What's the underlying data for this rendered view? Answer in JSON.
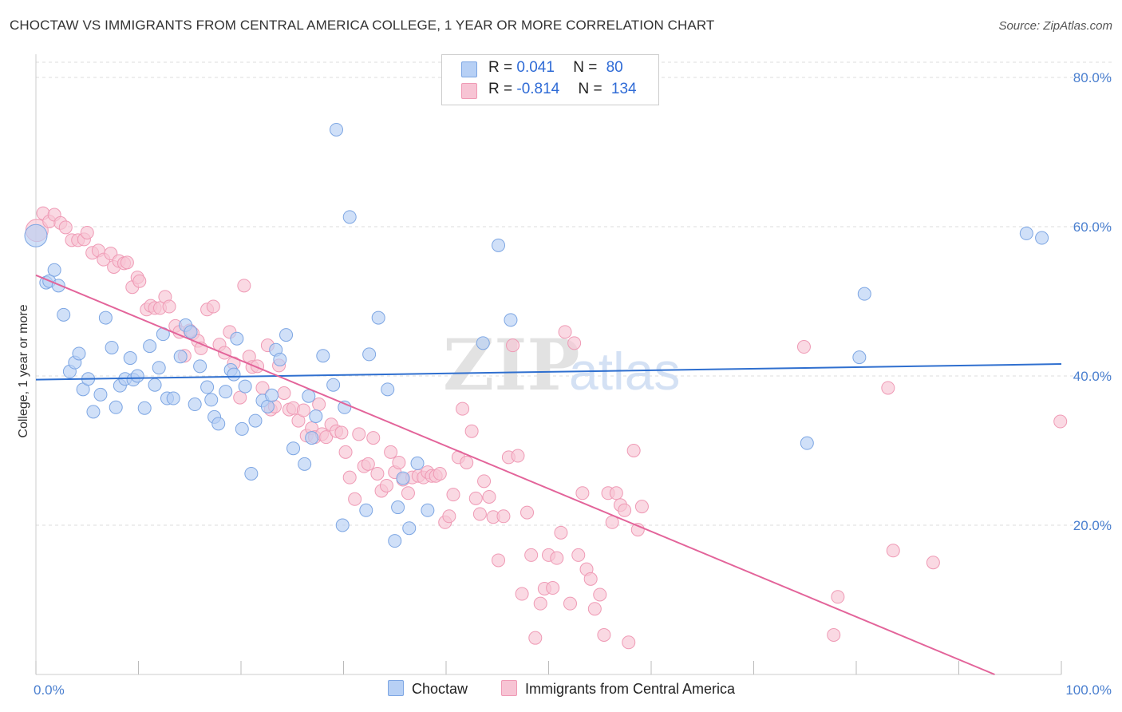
{
  "title": "CHOCTAW VS IMMIGRANTS FROM CENTRAL AMERICA COLLEGE, 1 YEAR OR MORE CORRELATION CHART",
  "source": "Source: ZipAtlas.com",
  "watermark": {
    "zip": "ZIP",
    "atlas": "atlas"
  },
  "legend": {
    "rows": [
      {
        "r_label": "R = ",
        "r_value": "0.041",
        "n_label": "N = ",
        "n_value": "80"
      },
      {
        "r_label": "R = ",
        "r_value": "-0.814",
        "n_label": "N = ",
        "n_value": "134"
      }
    ]
  },
  "colors": {
    "blue_fill": "#b7d0f5",
    "blue_stroke": "#7da6e3",
    "blue_line": "#2f6fcf",
    "pink_fill": "#f7c4d4",
    "pink_stroke": "#ef9ab5",
    "pink_line": "#e3649a",
    "grid": "#dddddd",
    "tick_text": "#4a7fcf"
  },
  "chart_data": {
    "type": "scatter",
    "title": "CHOCTAW VS IMMIGRANTS FROM CENTRAL AMERICA COLLEGE, 1 YEAR OR MORE CORRELATION CHART",
    "xlabel": "",
    "ylabel": "College, 1 year or more",
    "xlim": [
      0,
      100
    ],
    "ylim": [
      0,
      80
    ],
    "x_tick_labels": [
      "0.0%",
      "100.0%"
    ],
    "y_ticks": [
      20,
      40,
      60,
      80
    ],
    "y_tick_labels": [
      "20.0%",
      "40.0%",
      "60.0%",
      "80.0%"
    ],
    "grid": true,
    "legend_position": "top-center",
    "series": [
      {
        "name": "Choctaw",
        "color": "#b7d0f5",
        "trend": {
          "x": [
            0,
            100
          ],
          "y": [
            39.5,
            41.6
          ]
        },
        "points": [
          [
            0,
            58.8
          ],
          [
            1.0,
            52.5
          ],
          [
            1.3,
            52.7
          ],
          [
            1.8,
            54.2
          ],
          [
            2.2,
            52.1
          ],
          [
            2.7,
            48.2
          ],
          [
            3.3,
            40.6
          ],
          [
            3.8,
            41.8
          ],
          [
            4.2,
            43
          ],
          [
            4.6,
            38.2
          ],
          [
            5.1,
            39.6
          ],
          [
            5.6,
            35.2
          ],
          [
            6.3,
            37.5
          ],
          [
            6.8,
            47.8
          ],
          [
            7.4,
            43.8
          ],
          [
            7.8,
            35.8
          ],
          [
            8.2,
            38.7
          ],
          [
            8.7,
            39.6
          ],
          [
            9.2,
            42.4
          ],
          [
            9.5,
            39.5
          ],
          [
            9.9,
            40
          ],
          [
            10.6,
            35.7
          ],
          [
            11.1,
            44
          ],
          [
            11.6,
            38.8
          ],
          [
            12.0,
            41.1
          ],
          [
            12.4,
            45.6
          ],
          [
            12.8,
            37
          ],
          [
            13.4,
            37
          ],
          [
            14.1,
            42.6
          ],
          [
            14.6,
            46.8
          ],
          [
            15.1,
            45.9
          ],
          [
            15.5,
            36.2
          ],
          [
            16.0,
            41.3
          ],
          [
            16.7,
            38.5
          ],
          [
            17.1,
            36.8
          ],
          [
            17.4,
            34.5
          ],
          [
            17.8,
            33.6
          ],
          [
            18.5,
            37.9
          ],
          [
            19.0,
            40.8
          ],
          [
            19.3,
            40.2
          ],
          [
            19.6,
            45
          ],
          [
            20.1,
            32.9
          ],
          [
            20.4,
            38.6
          ],
          [
            21.0,
            26.9
          ],
          [
            21.4,
            34
          ],
          [
            22.1,
            36.7
          ],
          [
            22.6,
            35.9
          ],
          [
            23.0,
            37.4
          ],
          [
            23.4,
            43.5
          ],
          [
            23.8,
            42.2
          ],
          [
            24.4,
            45.5
          ],
          [
            25.1,
            30.3
          ],
          [
            26.2,
            28.2
          ],
          [
            26.6,
            37.3
          ],
          [
            26.9,
            31.7
          ],
          [
            27.3,
            34.6
          ],
          [
            28.0,
            42.7
          ],
          [
            29.0,
            38.8
          ],
          [
            29.3,
            73
          ],
          [
            29.9,
            20
          ],
          [
            30.1,
            35.8
          ],
          [
            30.6,
            61.3
          ],
          [
            32.2,
            22
          ],
          [
            32.5,
            42.9
          ],
          [
            33.4,
            47.8
          ],
          [
            34.3,
            38.2
          ],
          [
            35.0,
            17.9
          ],
          [
            35.3,
            22.4
          ],
          [
            35.8,
            26.3
          ],
          [
            36.4,
            19.6
          ],
          [
            37.2,
            28.3
          ],
          [
            38.2,
            22
          ],
          [
            43.6,
            44.4
          ],
          [
            45.1,
            57.5
          ],
          [
            46.3,
            47.5
          ],
          [
            75.2,
            31
          ],
          [
            80.8,
            51
          ],
          [
            80.3,
            42.5
          ],
          [
            96.6,
            59.1
          ],
          [
            98.1,
            58.5
          ]
        ]
      },
      {
        "name": "Immigrants from Central America",
        "color": "#f7c4d4",
        "trend": {
          "x": [
            0,
            93.5
          ],
          "y": [
            53.5,
            0
          ]
        },
        "points": [
          [
            0.1,
            59.5
          ],
          [
            0.7,
            61.8
          ],
          [
            1.3,
            60.7
          ],
          [
            1.8,
            61.6
          ],
          [
            2.4,
            60.5
          ],
          [
            2.9,
            59.9
          ],
          [
            3.5,
            58.2
          ],
          [
            4.1,
            58.2
          ],
          [
            4.7,
            58.3
          ],
          [
            5.0,
            59.2
          ],
          [
            5.5,
            56.5
          ],
          [
            6.1,
            56.8
          ],
          [
            6.6,
            55.6
          ],
          [
            7.3,
            56.4
          ],
          [
            7.6,
            54.6
          ],
          [
            8.1,
            55.4
          ],
          [
            8.6,
            55.1
          ],
          [
            8.9,
            55.2
          ],
          [
            9.4,
            51.9
          ],
          [
            9.9,
            53.2
          ],
          [
            10.1,
            52.7
          ],
          [
            10.8,
            48.9
          ],
          [
            11.2,
            49.4
          ],
          [
            11.6,
            49.1
          ],
          [
            12.1,
            49.1
          ],
          [
            12.6,
            50.6
          ],
          [
            13.0,
            49.3
          ],
          [
            13.6,
            46.7
          ],
          [
            14.0,
            45.9
          ],
          [
            14.5,
            42.7
          ],
          [
            15.0,
            46.1
          ],
          [
            15.3,
            45.7
          ],
          [
            15.8,
            44.7
          ],
          [
            16.1,
            43.7
          ],
          [
            16.7,
            48.9
          ],
          [
            17.3,
            49.3
          ],
          [
            17.9,
            44.2
          ],
          [
            18.4,
            43.1
          ],
          [
            18.9,
            45.9
          ],
          [
            19.3,
            41.7
          ],
          [
            19.9,
            37.1
          ],
          [
            20.3,
            52.1
          ],
          [
            20.8,
            42.6
          ],
          [
            21.1,
            41.2
          ],
          [
            21.6,
            41.3
          ],
          [
            22.1,
            38.4
          ],
          [
            22.6,
            44.1
          ],
          [
            22.9,
            35.5
          ],
          [
            23.3,
            35.9
          ],
          [
            23.7,
            41.4
          ],
          [
            24.2,
            37.7
          ],
          [
            24.7,
            35.5
          ],
          [
            25.1,
            35.7
          ],
          [
            25.6,
            34
          ],
          [
            26.1,
            35.4
          ],
          [
            26.4,
            32
          ],
          [
            26.9,
            33
          ],
          [
            27.2,
            31.8
          ],
          [
            27.6,
            36.2
          ],
          [
            27.9,
            32.2
          ],
          [
            28.3,
            31.8
          ],
          [
            28.8,
            33.5
          ],
          [
            29.3,
            32.6
          ],
          [
            29.8,
            32.4
          ],
          [
            30.2,
            29.8
          ],
          [
            30.6,
            26.4
          ],
          [
            31.1,
            23.5
          ],
          [
            31.5,
            32.2
          ],
          [
            32.0,
            27.9
          ],
          [
            32.4,
            28.2
          ],
          [
            32.9,
            31.7
          ],
          [
            33.3,
            26.9
          ],
          [
            33.7,
            24.6
          ],
          [
            34.2,
            25.3
          ],
          [
            34.6,
            29.8
          ],
          [
            35.0,
            27.1
          ],
          [
            35.4,
            28.4
          ],
          [
            35.8,
            26.1
          ],
          [
            36.3,
            24.3
          ],
          [
            36.7,
            26.4
          ],
          [
            37.3,
            26.6
          ],
          [
            37.8,
            26.4
          ],
          [
            38.2,
            27.1
          ],
          [
            38.6,
            26.6
          ],
          [
            39.0,
            26.6
          ],
          [
            39.4,
            26.9
          ],
          [
            39.9,
            20.4
          ],
          [
            40.3,
            21.2
          ],
          [
            40.7,
            24.1
          ],
          [
            41.2,
            29.1
          ],
          [
            41.6,
            35.6
          ],
          [
            42.0,
            28.4
          ],
          [
            42.5,
            32.6
          ],
          [
            42.9,
            23.6
          ],
          [
            43.3,
            21.5
          ],
          [
            43.7,
            25.9
          ],
          [
            44.2,
            23.8
          ],
          [
            44.6,
            21.1
          ],
          [
            45.1,
            15.3
          ],
          [
            45.6,
            21.2
          ],
          [
            46.1,
            29.1
          ],
          [
            46.5,
            44.1
          ],
          [
            47.0,
            29.3
          ],
          [
            47.4,
            10.8
          ],
          [
            47.9,
            21.7
          ],
          [
            48.3,
            16
          ],
          [
            48.7,
            4.9
          ],
          [
            49.2,
            9.5
          ],
          [
            49.6,
            11.5
          ],
          [
            50.0,
            16
          ],
          [
            50.4,
            11.6
          ],
          [
            50.8,
            15.6
          ],
          [
            51.2,
            19
          ],
          [
            51.6,
            45.9
          ],
          [
            52.1,
            9.5
          ],
          [
            52.5,
            44.4
          ],
          [
            52.9,
            16
          ],
          [
            53.3,
            24.3
          ],
          [
            53.7,
            14.1
          ],
          [
            54.1,
            12.8
          ],
          [
            54.5,
            8.8
          ],
          [
            55.0,
            10.7
          ],
          [
            55.4,
            5.3
          ],
          [
            55.8,
            24.3
          ],
          [
            56.2,
            20.4
          ],
          [
            56.6,
            24.3
          ],
          [
            57.0,
            22.7
          ],
          [
            57.4,
            22
          ],
          [
            57.8,
            4.3
          ],
          [
            58.3,
            30
          ],
          [
            58.7,
            19.4
          ],
          [
            59.1,
            22.5
          ],
          [
            74.9,
            43.9
          ],
          [
            77.8,
            5.3
          ],
          [
            78.2,
            10.4
          ],
          [
            83.1,
            38.4
          ],
          [
            83.6,
            16.6
          ],
          [
            87.5,
            15
          ],
          [
            99.9,
            33.9
          ]
        ]
      }
    ]
  },
  "bottom_legend": [
    {
      "label": "Choctaw"
    },
    {
      "label": "Immigrants from Central America"
    }
  ]
}
